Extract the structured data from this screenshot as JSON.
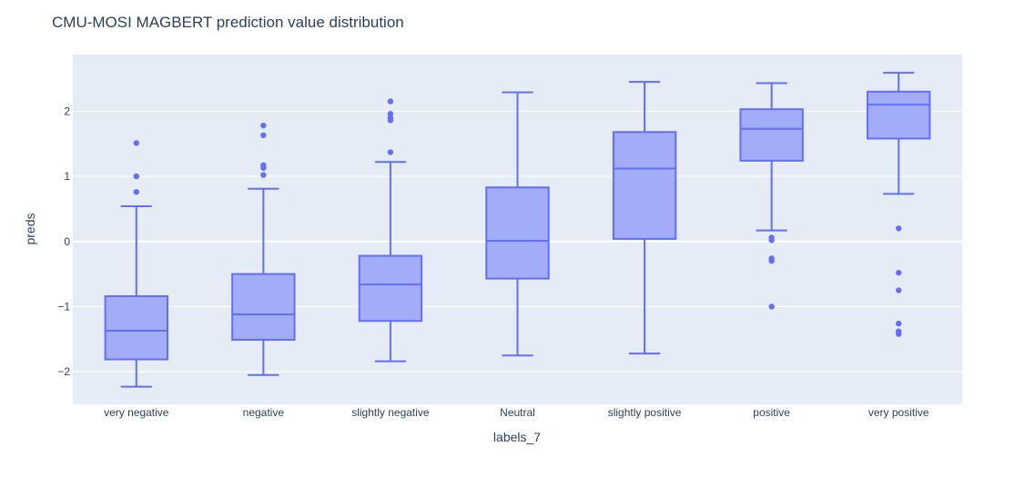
{
  "chart_data": {
    "type": "box",
    "title": "CMU-MOSI MAGBERT prediction value distribution",
    "xlabel": "labels_7",
    "ylabel": "preds",
    "ylim": [
      -2.5,
      2.87
    ],
    "yticks": [
      -2,
      -1,
      0,
      1,
      2
    ],
    "ytick_labels": [
      "−2",
      "−1",
      "0",
      "1",
      "2"
    ],
    "grid": true,
    "categories": [
      "very negative",
      "negative",
      "slightly negative",
      "Neutral",
      "slightly positive",
      "positive",
      "very positive"
    ],
    "boxes": [
      {
        "category": "very negative",
        "lower_fence": -2.23,
        "q1": -1.81,
        "median": -1.37,
        "q3": -0.84,
        "upper_fence": 0.54,
        "outliers": [
          0.76,
          1.0,
          1.51
        ]
      },
      {
        "category": "negative",
        "lower_fence": -2.05,
        "q1": -1.51,
        "median": -1.12,
        "q3": -0.5,
        "upper_fence": 0.81,
        "outliers": [
          1.02,
          1.13,
          1.17,
          1.63,
          1.78
        ]
      },
      {
        "category": "slightly negative",
        "lower_fence": -1.84,
        "q1": -1.22,
        "median": -0.66,
        "q3": -0.22,
        "upper_fence": 1.22,
        "outliers": [
          1.37,
          1.86,
          1.9,
          1.96,
          2.15
        ]
      },
      {
        "category": "Neutral",
        "lower_fence": -1.75,
        "q1": -0.57,
        "median": 0.01,
        "q3": 0.83,
        "upper_fence": 2.29,
        "outliers": []
      },
      {
        "category": "slightly positive",
        "lower_fence": -1.72,
        "q1": 0.04,
        "median": 1.12,
        "q3": 1.68,
        "upper_fence": 2.45,
        "outliers": []
      },
      {
        "category": "positive",
        "lower_fence": 0.17,
        "q1": 1.24,
        "median": 1.73,
        "q3": 2.03,
        "upper_fence": 2.43,
        "outliers": [
          0.06,
          0.02,
          -0.26,
          -0.3,
          -1.0
        ]
      },
      {
        "category": "very positive",
        "lower_fence": 0.73,
        "q1": 1.58,
        "median": 2.1,
        "q3": 2.3,
        "upper_fence": 2.59,
        "outliers": [
          0.2,
          -0.48,
          -0.75,
          -1.26,
          -1.38,
          -1.42
        ]
      }
    ],
    "colors": {
      "plot_bg": "#e5ecf6",
      "grid": "#ffffff",
      "box_fill": "#a3acf8",
      "box_line": "#636efa",
      "text": "#2a3f5f"
    }
  }
}
